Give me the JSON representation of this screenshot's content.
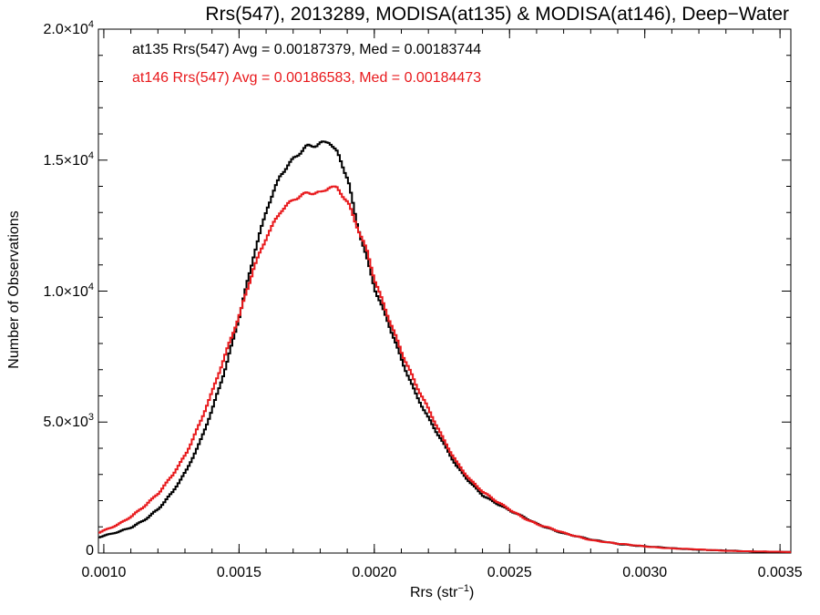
{
  "chart_data": {
    "type": "line",
    "title": "Rrs(547), 2013289, MODISA(at135) & MODISA(at146), Deep−Water",
    "xlabel_base": "Rrs (str",
    "xlabel_exp": "−1",
    "xlabel_tail": ")",
    "ylabel": "Number of Observations",
    "xlim": [
      0.00098,
      0.00354
    ],
    "ylim": [
      0,
      20000
    ],
    "x_ticks": [
      "0.0010",
      "0.0015",
      "0.0020",
      "0.0025",
      "0.0030",
      "0.0035"
    ],
    "x_tick_values": [
      0.001,
      0.0015,
      0.002,
      0.0025,
      0.003,
      0.0035
    ],
    "y_ticks": [
      {
        "value": 0,
        "label": "0",
        "exp": ""
      },
      {
        "value": 5000,
        "label": "5.0×10",
        "exp": "3"
      },
      {
        "value": 10000,
        "label": "1.0×10",
        "exp": "4"
      },
      {
        "value": 15000,
        "label": "1.5×10",
        "exp": "4"
      },
      {
        "value": 20000,
        "label": "2.0×10",
        "exp": "4"
      }
    ],
    "annotations": [
      "at135 Rrs(547) Avg = 0.00187379, Med = 0.00183744",
      "at146 Rrs(547) Avg = 0.00186583, Med = 0.00184473"
    ],
    "series": [
      {
        "color": "#000000",
        "x": [
          0.00098,
          0.00105,
          0.0011,
          0.00115,
          0.0012,
          0.00125,
          0.0013,
          0.00135,
          0.0014,
          0.00145,
          0.0015,
          0.00155,
          0.0016,
          0.00165,
          0.0017,
          0.00175,
          0.00178,
          0.0018,
          0.00183,
          0.00186,
          0.0019,
          0.00193,
          0.00197,
          0.002,
          0.00205,
          0.0021,
          0.00215,
          0.0022,
          0.00225,
          0.0023,
          0.00235,
          0.0024,
          0.00245,
          0.0025,
          0.00255,
          0.0026,
          0.0027,
          0.0028,
          0.0029,
          0.003,
          0.0031,
          0.0032,
          0.0033,
          0.0034,
          0.00354
        ],
        "y": [
          600,
          800,
          1000,
          1300,
          1700,
          2300,
          3100,
          4200,
          5600,
          7200,
          9100,
          11300,
          13200,
          14500,
          15100,
          15500,
          15500,
          15600,
          15700,
          15300,
          14300,
          12700,
          11200,
          10000,
          8700,
          7300,
          6100,
          5100,
          4200,
          3300,
          2700,
          2200,
          1900,
          1600,
          1350,
          1100,
          750,
          500,
          350,
          250,
          180,
          130,
          90,
          60,
          40
        ]
      },
      {
        "color": "#e8191c",
        "x": [
          0.00098,
          0.00105,
          0.0011,
          0.00115,
          0.0012,
          0.00125,
          0.0013,
          0.00135,
          0.0014,
          0.00145,
          0.0015,
          0.00155,
          0.0016,
          0.00165,
          0.0017,
          0.00175,
          0.00178,
          0.0018,
          0.00183,
          0.00186,
          0.0019,
          0.00193,
          0.00197,
          0.002,
          0.00205,
          0.0021,
          0.00215,
          0.0022,
          0.00225,
          0.0023,
          0.00235,
          0.0024,
          0.00245,
          0.0025,
          0.00255,
          0.0026,
          0.0027,
          0.0028,
          0.0029,
          0.003,
          0.0031,
          0.0032,
          0.0033,
          0.0034,
          0.00354
        ],
        "y": [
          800,
          1100,
          1400,
          1800,
          2300,
          3000,
          3800,
          4900,
          6200,
          7700,
          9200,
          10900,
          12100,
          13000,
          13500,
          13800,
          13800,
          13800,
          14000,
          13900,
          13300,
          12500,
          11500,
          10400,
          9000,
          7600,
          6400,
          5400,
          4400,
          3500,
          2800,
          2300,
          1950,
          1650,
          1350,
          1100,
          750,
          500,
          350,
          250,
          180,
          130,
          90,
          60,
          40
        ]
      }
    ]
  },
  "colors": {
    "series_a": "#000000",
    "series_b": "#e8191c",
    "axis": "#000000"
  }
}
